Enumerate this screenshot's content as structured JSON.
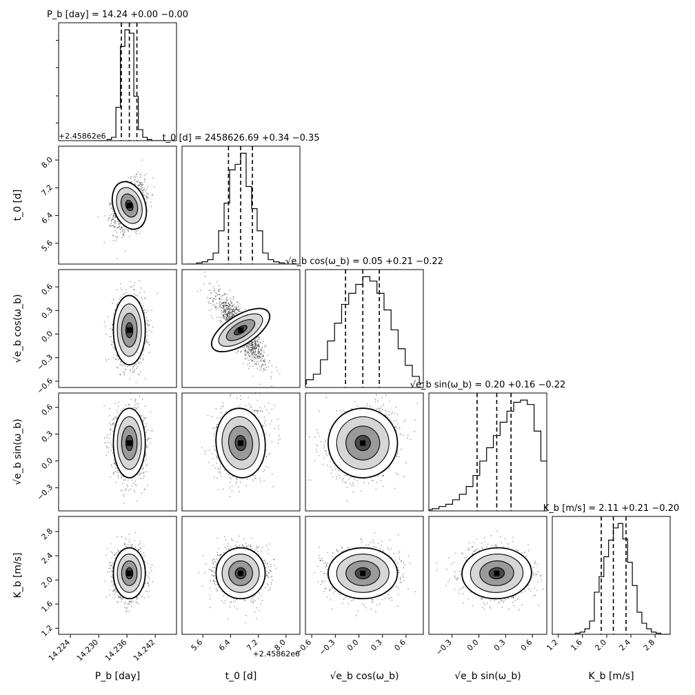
{
  "chart_data": {
    "type": "scatter",
    "kind": "corner-plot",
    "parameters": [
      {
        "label": "P_b [day]",
        "title": "P_b [day] = 14.24 +0.00 −0.00",
        "median": 14.2365,
        "q16": 14.2348,
        "q84": 14.2381,
        "range": [
          14.2215,
          14.2465
        ],
        "ticks": [
          14.224,
          14.23,
          14.236,
          14.242
        ],
        "tick_labels": [
          "14.224",
          "14.230",
          "14.236",
          "14.242"
        ],
        "offset": "+2.45862e6"
      },
      {
        "label": "t_0 [d]",
        "title": "t_0 [d] = 2458626.69 +0.34 −0.35",
        "median": 6.69,
        "q16": 6.34,
        "q84": 7.03,
        "range": [
          5.0,
          8.4
        ],
        "ticks": [
          5.6,
          6.4,
          7.2,
          8.0
        ],
        "tick_labels": [
          "5.6",
          "6.4",
          "7.2",
          "8.0"
        ],
        "offset": "+2.45862e6"
      },
      {
        "label": "√e_b cos(ω_b)",
        "title": "√e_b cos(ω_b) = 0.05 +0.21 −0.22",
        "median": 0.05,
        "q16": -0.17,
        "q84": 0.26,
        "range": [
          -0.68,
          0.82
        ],
        "ticks": [
          -0.6,
          -0.3,
          0.0,
          0.3,
          0.6
        ],
        "tick_labels": [
          "−0.6",
          "−0.3",
          "0.0",
          "0.3",
          "0.6"
        ]
      },
      {
        "label": "√e_b sin(ω_b)",
        "title": "√e_b sin(ω_b) = 0.20 +0.16 −0.22",
        "median": 0.2,
        "q16": -0.02,
        "q84": 0.36,
        "range": [
          -0.56,
          0.76
        ],
        "ticks": [
          -0.3,
          0.0,
          0.3,
          0.6
        ],
        "tick_labels": [
          "−0.3",
          "0.0",
          "0.3",
          "0.6"
        ]
      },
      {
        "label": "K_b [m/s]",
        "title": "K_b [m/s] = 2.11 +0.21 −0.20",
        "median": 2.11,
        "q16": 1.91,
        "q84": 2.32,
        "range": [
          1.1,
          3.05
        ],
        "ticks": [
          1.2,
          1.6,
          2.0,
          2.4,
          2.8
        ],
        "tick_labels": [
          "1.2",
          "1.6",
          "2.0",
          "2.4",
          "2.8"
        ]
      }
    ],
    "histograms": [
      [
        0,
        0,
        0,
        1,
        3,
        30,
        85,
        100,
        97,
        40,
        10,
        3,
        1,
        0,
        0,
        0
      ],
      [
        0,
        0,
        1,
        2,
        4,
        10,
        30,
        55,
        85,
        90,
        100,
        70,
        50,
        30,
        10,
        4,
        2,
        1,
        0,
        0
      ],
      [
        0,
        1,
        3,
        7,
        12,
        25,
        42,
        58,
        75,
        85,
        93,
        100,
        96,
        85,
        70,
        52,
        35,
        20,
        10,
        4,
        1,
        0
      ],
      [
        0,
        1,
        2,
        4,
        6,
        10,
        15,
        22,
        32,
        45,
        57,
        68,
        80,
        90,
        98,
        100,
        96,
        72,
        45,
        18,
        6,
        2,
        0
      ],
      [
        0,
        0,
        0,
        0,
        1,
        2,
        5,
        12,
        38,
        52,
        70,
        85,
        96,
        100,
        86,
        65,
        44,
        20,
        10,
        5,
        2,
        1,
        0,
        0
      ]
    ],
    "correlations": {
      "1-0": 0.35,
      "2-0": 0.0,
      "2-1": -0.85,
      "3-0": 0.0,
      "3-1": 0.1,
      "3-2": 0.2,
      "4-0": 0.0,
      "4-1": 0.0,
      "4-2": 0.0,
      "4-3": 0.05
    },
    "grid": false,
    "legend": "none"
  }
}
